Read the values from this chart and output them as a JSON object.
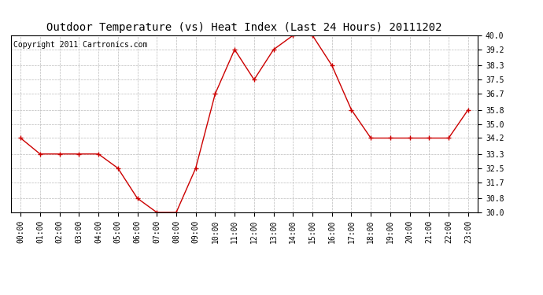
{
  "title": "Outdoor Temperature (vs) Heat Index (Last 24 Hours) 20111202",
  "copyright_text": "Copyright 2011 Cartronics.com",
  "x_labels": [
    "00:00",
    "01:00",
    "02:00",
    "03:00",
    "04:00",
    "05:00",
    "06:00",
    "07:00",
    "08:00",
    "09:00",
    "10:00",
    "11:00",
    "12:00",
    "13:00",
    "14:00",
    "15:00",
    "16:00",
    "17:00",
    "18:00",
    "19:00",
    "20:00",
    "21:00",
    "22:00",
    "23:00"
  ],
  "y_values": [
    34.2,
    33.3,
    33.3,
    33.3,
    33.3,
    32.5,
    30.8,
    30.0,
    30.0,
    32.5,
    36.7,
    39.2,
    37.5,
    39.2,
    40.0,
    40.0,
    38.3,
    35.8,
    34.2,
    34.2,
    34.2,
    34.2,
    34.2,
    35.8
  ],
  "ylim_min": 30.0,
  "ylim_max": 40.0,
  "yticks": [
    30.0,
    30.8,
    31.7,
    32.5,
    33.3,
    34.2,
    35.0,
    35.8,
    36.7,
    37.5,
    38.3,
    39.2,
    40.0
  ],
  "line_color": "#cc0000",
  "marker": "+",
  "marker_color": "#cc0000",
  "bg_color": "#ffffff",
  "grid_color": "#bbbbbb",
  "title_fontsize": 10,
  "tick_fontsize": 7,
  "copyright_fontsize": 7
}
